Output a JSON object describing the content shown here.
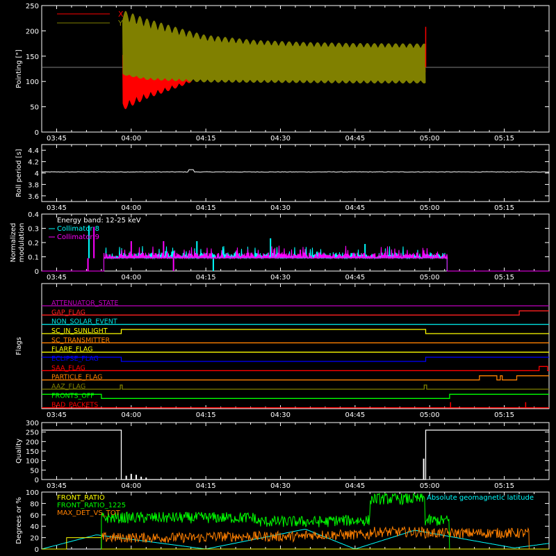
{
  "colors": {
    "background": "#000000",
    "foreground": "#ffffff",
    "x_pointing": "#ff0000",
    "y_pointing": "#808000",
    "collimator_8": "#00ffff",
    "collimator_9": "#ff00ff",
    "front_ratio": "#ffff00",
    "front_ratio_1225": "#00ff00",
    "max_det_vs_tot": "#ff8000",
    "geomag_latitude": "#00ffff"
  },
  "time_axis": {
    "ticks": [
      "03:45",
      "04:00",
      "04:15",
      "04:30",
      "04:45",
      "05:00",
      "05:15"
    ],
    "tick_minutes": [
      0,
      15,
      30,
      45,
      60,
      75,
      90
    ],
    "range_minutes": [
      -3,
      99
    ]
  },
  "chart_data": [
    {
      "type": "area",
      "ylabel": "Pointing [\"]",
      "ylim": [
        0,
        250
      ],
      "yticks": [
        0,
        50,
        100,
        150,
        200,
        250
      ],
      "reference_line": 128,
      "legend_placement": "top-left",
      "series": [
        {
          "name": "X",
          "color": "#ff0000",
          "start": 13.2,
          "end": 74.2,
          "center": 128,
          "upper": [
            [
              13.2,
              158
            ],
            [
              18,
              148
            ],
            [
              30,
              142
            ],
            [
              45,
              140
            ],
            [
              60,
              138
            ],
            [
              74.2,
              137
            ]
          ],
          "lower": [
            [
              13.2,
              42
            ],
            [
              18,
              65
            ],
            [
              25,
              90
            ],
            [
              30,
              110
            ],
            [
              40,
              115
            ],
            [
              50,
              116
            ],
            [
              60,
              117
            ],
            [
              74.2,
              118
            ]
          ]
        },
        {
          "name": "Y",
          "color": "#808000",
          "start": 13.2,
          "end": 74.2,
          "center": 128,
          "upper": [
            [
              13.2,
              242
            ],
            [
              18,
              225
            ],
            [
              25,
              205
            ],
            [
              30,
              192
            ],
            [
              40,
              182
            ],
            [
              50,
              178
            ],
            [
              60,
              176
            ],
            [
              74.2,
              175
            ]
          ],
          "lower": [
            [
              13.2,
              113
            ],
            [
              18,
              103
            ],
            [
              30,
              98
            ],
            [
              45,
              97
            ],
            [
              60,
              96
            ],
            [
              74.2,
              96
            ]
          ]
        }
      ]
    },
    {
      "type": "line",
      "ylabel": "Roll period [s]",
      "ylim": [
        3.5,
        4.5
      ],
      "yticks": [
        3.6,
        3.8,
        4.0,
        4.2,
        4.4
      ],
      "series": [
        {
          "name": "",
          "color": "#ffffff",
          "constant": 4.02,
          "bump_at": 27,
          "bump_value": 4.06
        }
      ]
    },
    {
      "type": "bar",
      "ylabel_lines": [
        "Normalized",
        "modulation"
      ],
      "ylim": [
        0,
        0.4
      ],
      "yticks": [
        0.0,
        0.1,
        0.2,
        0.3,
        0.4
      ],
      "annotation": "Energy band: 12-25 keV",
      "legend_placement": "top-left",
      "active_range": [
        9.5,
        78.5
      ],
      "baseline": 0.09,
      "series": [
        {
          "name": "Collimator 8",
          "color": "#00ffff",
          "spikes": [
            [
              6.5,
              0.32
            ],
            [
              28.2,
              0.21
            ],
            [
              43,
              0.23
            ],
            [
              62,
              0.19
            ]
          ],
          "dips": [
            [
              31.5,
              0.0
            ]
          ]
        },
        {
          "name": "Collimator 9",
          "color": "#ff00ff",
          "spikes": [
            [
              7.5,
              0.31
            ],
            [
              21.5,
              0.21
            ],
            [
              15,
              0.21
            ],
            [
              49,
              0.15
            ]
          ],
          "dips": [
            [
              6.3,
              0.0
            ],
            [
              23.5,
              0.0
            ]
          ]
        }
      ]
    },
    {
      "type": "line",
      "ylabel": "Flags",
      "flags": [
        {
          "name": "ATTENUATOR_STATE",
          "color": "#c000c0",
          "steps": [
            [
              -3,
              0
            ],
            [
              99,
              0
            ]
          ]
        },
        {
          "name": "GAP_FLAG",
          "color": "#ff2020",
          "steps": [
            [
              -3,
              0
            ],
            [
              93,
              0
            ],
            [
              93,
              1
            ],
            [
              99,
              1
            ]
          ]
        },
        {
          "name": "NON_SOLAR_EVENT",
          "color": "#00e0e0",
          "steps": [
            [
              -3,
              0
            ],
            [
              99,
              0
            ]
          ]
        },
        {
          "name": "SC_IN_SUNLIGHT",
          "color": "#ffff00",
          "steps": [
            [
              -3,
              0
            ],
            [
              13,
              0
            ],
            [
              13,
              1
            ],
            [
              74.2,
              1
            ],
            [
              74.2,
              0
            ],
            [
              99,
              0
            ]
          ]
        },
        {
          "name": "SC_TRANSMITTER",
          "color": "#ff8000",
          "steps": [
            [
              -3,
              0
            ],
            [
              99,
              0
            ]
          ]
        },
        {
          "name": "FLARE_FLAG",
          "color": "#ffff00",
          "steps": [
            [
              -3,
              0
            ],
            [
              99,
              0
            ]
          ]
        },
        {
          "name": "ECLIPSE_FLAG",
          "color": "#0000ff",
          "steps": [
            [
              -3,
              1
            ],
            [
              13,
              1
            ],
            [
              13,
              0
            ],
            [
              74.2,
              0
            ],
            [
              74.2,
              1
            ],
            [
              99,
              1
            ]
          ]
        },
        {
          "name": "SAA_FLAG",
          "color": "#ff0000",
          "steps": [
            [
              -3,
              0
            ],
            [
              97,
              0
            ],
            [
              97,
              1
            ],
            [
              98.7,
              1
            ],
            [
              98.7,
              0
            ],
            [
              99,
              0
            ]
          ]
        },
        {
          "name": "PARTICLE_FLAG",
          "color": "#ff8000",
          "steps": [
            [
              -3,
              0
            ],
            [
              85,
              0
            ],
            [
              85,
              1
            ],
            [
              88.5,
              1
            ],
            [
              88.5,
              0
            ],
            [
              89.2,
              0
            ],
            [
              89.2,
              1
            ],
            [
              89.6,
              1
            ],
            [
              89.6,
              0
            ],
            [
              92.5,
              0
            ],
            [
              92.5,
              1
            ],
            [
              99,
              1
            ]
          ]
        },
        {
          "name": "AAZ_FLAG",
          "color": "#808000",
          "steps": [
            [
              -3,
              0
            ],
            [
              12.8,
              0
            ],
            [
              12.8,
              1
            ],
            [
              13.2,
              1
            ],
            [
              13.2,
              0
            ],
            [
              73.9,
              0
            ],
            [
              73.9,
              1
            ],
            [
              74.4,
              1
            ],
            [
              74.4,
              0
            ],
            [
              99,
              0
            ]
          ]
        },
        {
          "name": "FRONTS_OFF",
          "color": "#00ff00",
          "steps": [
            [
              -3,
              1
            ],
            [
              9,
              1
            ],
            [
              9,
              0
            ],
            [
              79,
              0
            ],
            [
              79,
              1
            ],
            [
              99,
              1
            ]
          ]
        },
        {
          "name": "BAD_PACKETS",
          "color": "#ff0000",
          "steps": [
            [
              -3,
              0
            ],
            [
              99,
              0
            ]
          ],
          "spikes": [
            79.2,
            94.3
          ]
        }
      ]
    },
    {
      "type": "line",
      "ylabel": "Quality",
      "ylim": [
        0,
        300
      ],
      "yticks": [
        0,
        50,
        100,
        150,
        200,
        250,
        300
      ],
      "series": [
        {
          "name": "",
          "color": "#ffffff",
          "steps": [
            [
              -3,
              260
            ],
            [
              13,
              260
            ],
            [
              13,
              0
            ],
            [
              74.2,
              0
            ],
            [
              74.2,
              260
            ],
            [
              99,
              260
            ]
          ],
          "spikes": [
            [
              14,
              20
            ],
            [
              15,
              30
            ],
            [
              16,
              25
            ],
            [
              17,
              15
            ],
            [
              18,
              10
            ],
            [
              73.8,
              110
            ]
          ]
        }
      ]
    },
    {
      "type": "line",
      "ylabel": "Degrees or %",
      "ylim": [
        0,
        100
      ],
      "yticks": [
        0,
        20,
        40,
        60,
        80,
        100
      ],
      "legend_placement": "top-left",
      "series": [
        {
          "name": "FRONT_RATIO",
          "color": "#ffff00",
          "steps": [
            [
              -3,
              0
            ],
            [
              2,
              0
            ],
            [
              2,
              20
            ],
            [
              9,
              20
            ],
            [
              9,
              0
            ],
            [
              99,
              0
            ]
          ]
        },
        {
          "name": "FRONT_RATIO_1225",
          "color": "#00ff00",
          "segments": [
            [
              9,
              55
            ],
            [
              40,
              48
            ],
            [
              55,
              50
            ],
            [
              63,
              88
            ],
            [
              74,
              50
            ],
            [
              79,
              50
            ]
          ]
        },
        {
          "name": "MAX_DET_VS_TOT",
          "color": "#ff8000",
          "segments": [
            [
              9,
              20
            ],
            [
              30,
              22
            ],
            [
              50,
              25
            ],
            [
              63,
              30
            ],
            [
              74,
              28
            ],
            [
              95,
              18
            ]
          ]
        },
        {
          "name": "Absolute geomagnetic latitude",
          "color": "#00ffff",
          "latitude": [
            [
              -3,
              0
            ],
            [
              8,
              25
            ],
            [
              30,
              0
            ],
            [
              50,
              35
            ],
            [
              60,
              0
            ],
            [
              72,
              33
            ],
            [
              92,
              2
            ],
            [
              99,
              10
            ]
          ]
        }
      ]
    }
  ]
}
